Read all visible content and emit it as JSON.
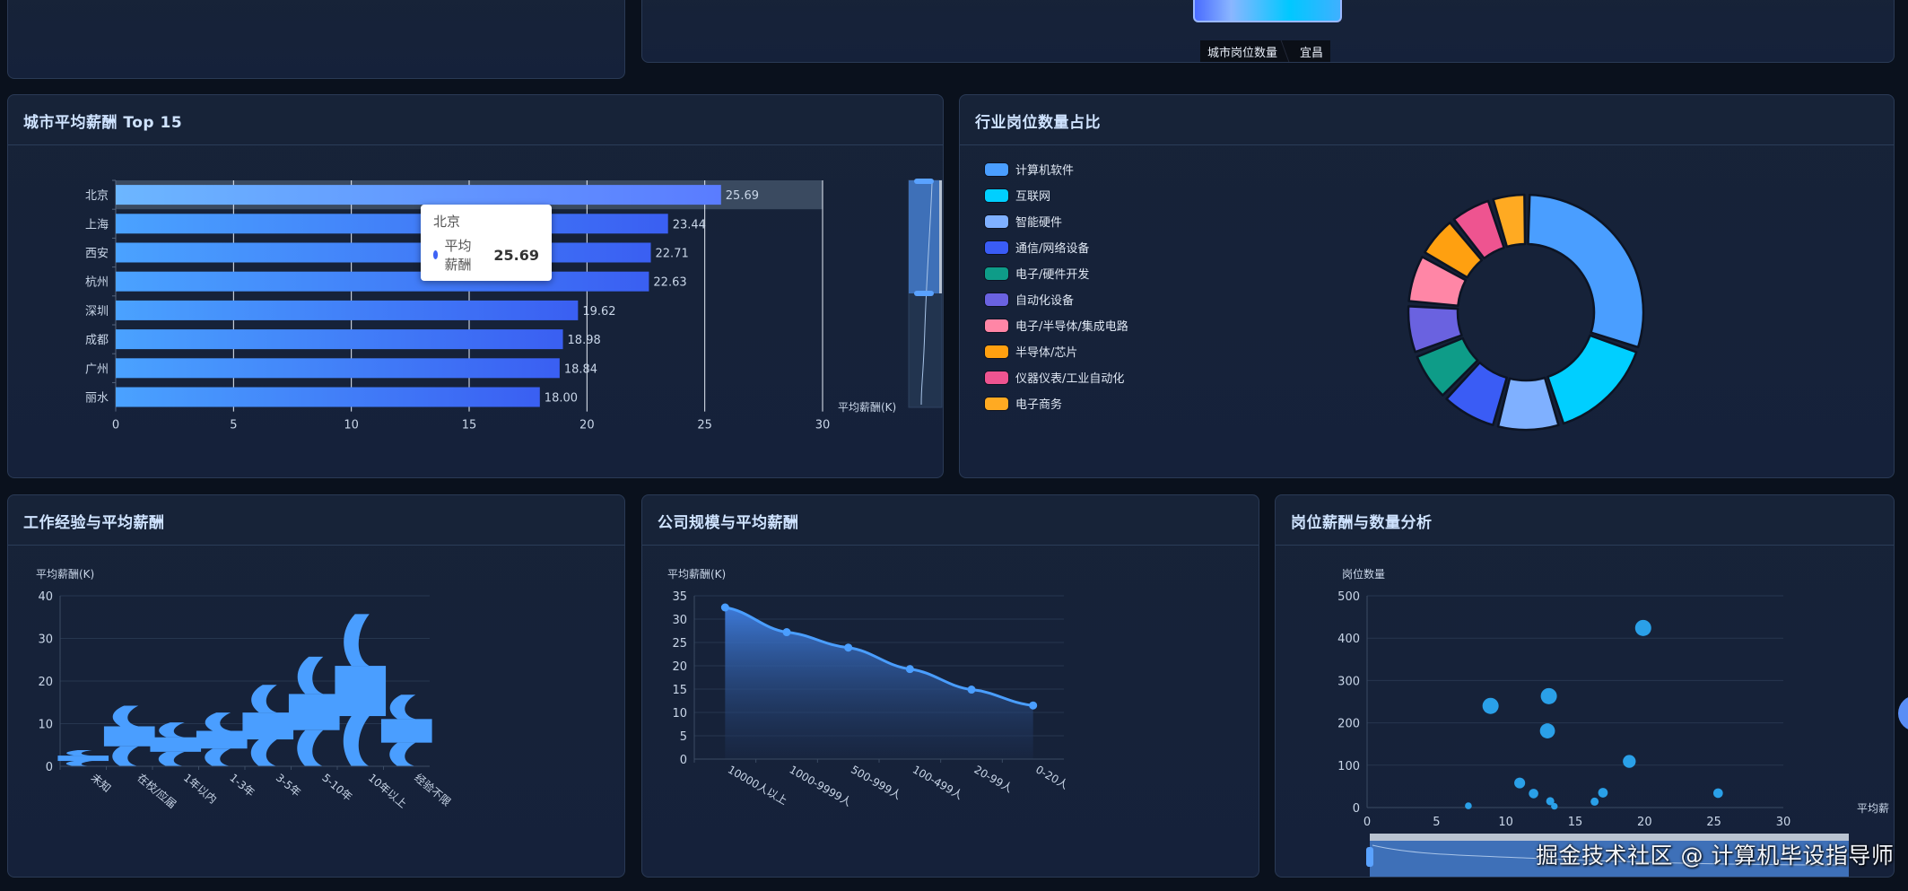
{
  "top_right": {
    "breadcrumb": [
      "城市岗位数量",
      "宜昌"
    ]
  },
  "city_panel": {
    "title": "城市平均薪酬 Top 15",
    "tooltip": {
      "city": "北京",
      "series": "平均薪酬",
      "value": "25.69"
    },
    "x_axis_name": "平均薪酬(K)"
  },
  "industry_panel": {
    "title": "行业岗位数量占比"
  },
  "experience_panel": {
    "title": "工作经验与平均薪酬",
    "y_axis_name": "平均薪酬(K)"
  },
  "company_panel": {
    "title": "公司规模与平均薪酬",
    "y_axis_name": "平均薪酬(K)"
  },
  "scatter_panel": {
    "title": "岗位薪酬与数量分析",
    "y_axis_name": "岗位数量",
    "x_axis_name": "平均薪"
  },
  "watermark": "掘金技术社区 @ 计算机毕设指导师",
  "colors": {
    "bar_start": "#4a9eff",
    "bar_end": "#3a60f0",
    "accent": "#4a9eff",
    "scatter": "#2aa0e8"
  },
  "chart_data": [
    {
      "type": "bar",
      "orientation": "horizontal",
      "title": "城市平均薪酬 Top 15",
      "categories": [
        "北京",
        "上海",
        "西安",
        "杭州",
        "深圳",
        "成都",
        "广州",
        "丽水"
      ],
      "values": [
        25.69,
        23.44,
        22.71,
        22.63,
        19.62,
        18.98,
        18.84,
        18.0
      ],
      "xlabel": "平均薪酬(K)",
      "xlim": [
        0,
        30
      ],
      "xticks": [
        0,
        5,
        10,
        15,
        20,
        25,
        30
      ],
      "grid": true,
      "highlighted": "北京"
    },
    {
      "type": "pie",
      "variant": "donut",
      "title": "行业岗位数量占比",
      "legend_position": "left",
      "labels": [
        "计算机软件",
        "互联网",
        "智能硬件",
        "通信/网络设备",
        "电子/硬件开发",
        "自动化设备",
        "电子/半导体/集成电路",
        "半导体/芯片",
        "仪器仪表/工业自动化",
        "电子商务"
      ],
      "values": [
        30,
        15,
        9,
        8,
        7,
        7,
        7,
        6,
        6,
        5
      ],
      "colors": [
        "#4a9eff",
        "#00cfff",
        "#7fb0ff",
        "#3a5cf5",
        "#0e9c88",
        "#6a62e0",
        "#ff86a6",
        "#ffa010",
        "#ee5490",
        "#ffaa22"
      ]
    },
    {
      "type": "bar",
      "variant": "pictorial",
      "title": "工作经验与平均薪酬",
      "categories": [
        "未知",
        "在校/应届",
        "1年以内",
        "1-3年",
        "3-5年",
        "5-10年",
        "10年以上",
        "经验不限"
      ],
      "values": [
        3.8,
        14.2,
        10.3,
        12.6,
        19.1,
        25.7,
        35.7,
        16.8
      ],
      "ylabel": "平均薪酬(K)",
      "ylim": [
        0,
        40
      ],
      "yticks": [
        0,
        10,
        20,
        30,
        40
      ]
    },
    {
      "type": "area",
      "title": "公司规模与平均薪酬",
      "categories": [
        "10000人以上",
        "1000-9999人",
        "500-999人",
        "100-499人",
        "20-99人",
        "0-20人"
      ],
      "values": [
        32.5,
        27.2,
        23.9,
        19.3,
        14.9,
        11.5
      ],
      "ylabel": "平均薪酬(K)",
      "ylim": [
        0,
        35
      ],
      "yticks": [
        0,
        5,
        10,
        15,
        20,
        25,
        30,
        35
      ]
    },
    {
      "type": "scatter",
      "title": "岗位薪酬与数量分析",
      "xlabel": "平均薪",
      "ylabel": "岗位数量",
      "xlim": [
        0,
        30
      ],
      "ylim": [
        0,
        500
      ],
      "xticks": [
        0,
        5,
        10,
        15,
        20,
        25,
        30
      ],
      "yticks": [
        0,
        100,
        200,
        300,
        400,
        500
      ],
      "points": [
        {
          "x": 7.3,
          "y": 4
        },
        {
          "x": 8.9,
          "y": 240
        },
        {
          "x": 11.0,
          "y": 58
        },
        {
          "x": 12.0,
          "y": 33
        },
        {
          "x": 13.1,
          "y": 263
        },
        {
          "x": 13.0,
          "y": 181
        },
        {
          "x": 13.2,
          "y": 15
        },
        {
          "x": 13.5,
          "y": 3
        },
        {
          "x": 16.4,
          "y": 14
        },
        {
          "x": 17.0,
          "y": 35
        },
        {
          "x": 18.9,
          "y": 109
        },
        {
          "x": 19.9,
          "y": 424
        },
        {
          "x": 25.3,
          "y": 34
        }
      ]
    }
  ]
}
